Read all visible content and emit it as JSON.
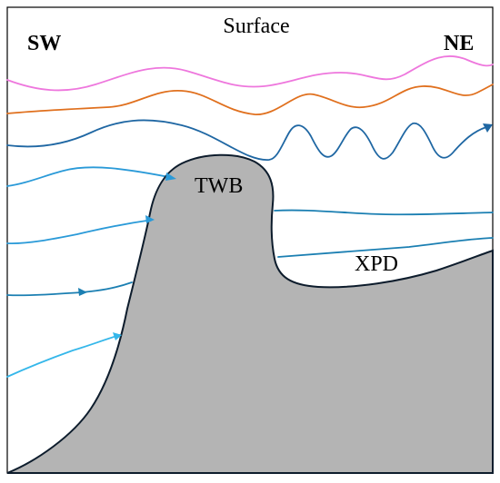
{
  "labels": {
    "surface": "Surface",
    "sw": "SW",
    "ne": "NE",
    "twb": "TWB",
    "xpd": "XPD"
  },
  "colors": {
    "pink": "#ee77dd",
    "orange": "#e0701e",
    "dark_blue": "#1f67a3",
    "mid_blue": "#2a9ad8",
    "light_blue": "#35b7ea",
    "teal_blue": "#1b7fb2",
    "bathymetry_fill": "#b4b4b4",
    "bathymetry_outline": "#0d1c2c",
    "frame": "#000000"
  }
}
